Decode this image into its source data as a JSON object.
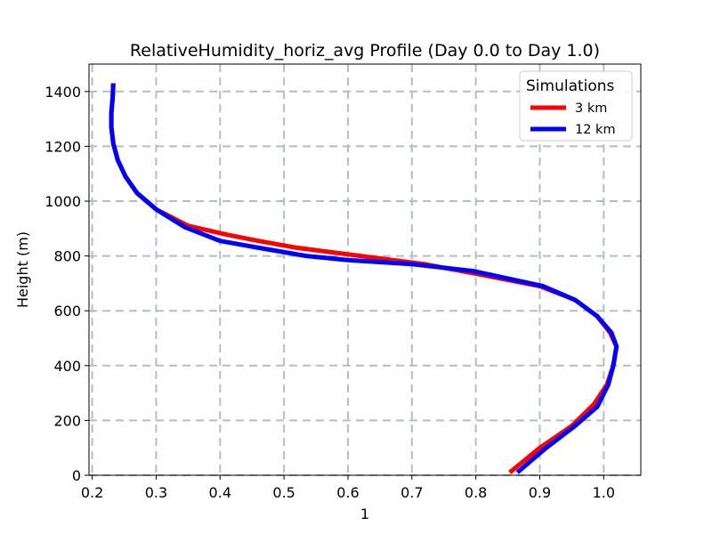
{
  "chart_data": {
    "type": "line",
    "title": "RelativeHumidity_horiz_avg Profile (Day 0.0 to Day 1.0)",
    "xlabel": "1",
    "ylabel": "Height (m)",
    "xlim": [
      0.195,
      1.058
    ],
    "ylim": [
      0,
      1500
    ],
    "xticks": [
      0.2,
      0.3,
      0.4,
      0.5,
      0.6,
      0.7,
      0.8,
      0.9,
      1.0
    ],
    "xtick_labels": [
      "0.2",
      "0.3",
      "0.4",
      "0.5",
      "0.6",
      "0.7",
      "0.8",
      "0.9",
      "1.0"
    ],
    "yticks": [
      0,
      200,
      400,
      600,
      800,
      1000,
      1200,
      1400
    ],
    "ytick_labels": [
      "0",
      "200",
      "400",
      "600",
      "800",
      "1000",
      "1200",
      "1400"
    ],
    "grid": true,
    "legend": {
      "title": "Simulations",
      "position": "top-right"
    },
    "series": [
      {
        "name": "3 km",
        "color": "#ff0000",
        "points": [
          [
            0.853,
            10
          ],
          [
            0.9,
            100
          ],
          [
            0.95,
            180
          ],
          [
            0.985,
            260
          ],
          [
            1.005,
            330
          ],
          [
            1.015,
            400
          ],
          [
            1.02,
            470
          ],
          [
            1.01,
            520
          ],
          [
            0.99,
            580
          ],
          [
            0.955,
            640
          ],
          [
            0.9,
            690
          ],
          [
            0.8,
            735
          ],
          [
            0.72,
            770
          ],
          [
            0.62,
            800
          ],
          [
            0.52,
            830
          ],
          [
            0.46,
            855
          ],
          [
            0.41,
            878
          ],
          [
            0.35,
            910
          ],
          [
            0.3,
            970
          ],
          [
            0.27,
            1030
          ],
          [
            0.252,
            1090
          ],
          [
            0.24,
            1150
          ],
          [
            0.233,
            1210
          ],
          [
            0.23,
            1270
          ],
          [
            0.23,
            1320
          ],
          [
            0.232,
            1380
          ],
          [
            0.233,
            1430
          ]
        ]
      },
      {
        "name": "12 km",
        "color": "#0000ff",
        "points": [
          [
            0.865,
            10
          ],
          [
            0.91,
            100
          ],
          [
            0.955,
            180
          ],
          [
            0.99,
            250
          ],
          [
            1.007,
            330
          ],
          [
            1.015,
            400
          ],
          [
            1.02,
            470
          ],
          [
            1.012,
            520
          ],
          [
            0.99,
            580
          ],
          [
            0.955,
            640
          ],
          [
            0.905,
            690
          ],
          [
            0.795,
            745
          ],
          [
            0.7,
            770
          ],
          [
            0.6,
            785
          ],
          [
            0.535,
            800
          ],
          [
            0.46,
            830
          ],
          [
            0.4,
            855
          ],
          [
            0.345,
            905
          ],
          [
            0.3,
            970
          ],
          [
            0.27,
            1030
          ],
          [
            0.252,
            1090
          ],
          [
            0.24,
            1150
          ],
          [
            0.233,
            1210
          ],
          [
            0.23,
            1270
          ],
          [
            0.23,
            1320
          ],
          [
            0.232,
            1380
          ],
          [
            0.233,
            1430
          ]
        ]
      }
    ]
  }
}
